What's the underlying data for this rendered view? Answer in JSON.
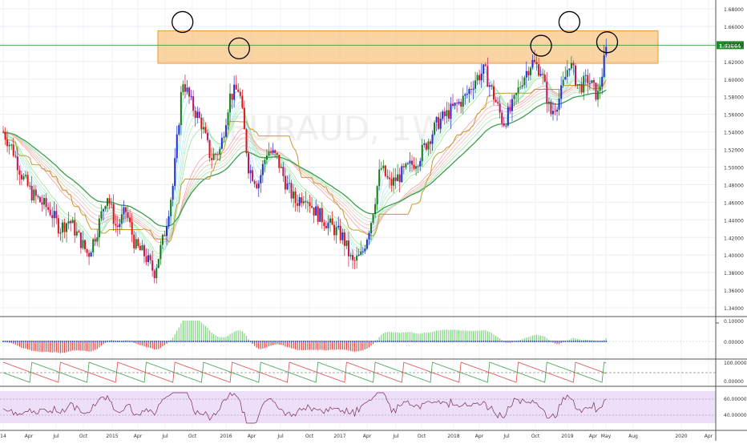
{
  "watermark": "EURAUD, 1W",
  "price_axis": {
    "ticks": [
      "1.68000",
      "1.66000",
      "1.64000",
      "1.62000",
      "1.60000",
      "1.58000",
      "1.56000",
      "1.54000",
      "1.52000",
      "1.50000",
      "1.48000",
      "1.46000",
      "1.44000",
      "1.42000",
      "1.40000",
      "1.38000",
      "1.36000",
      "1.34000"
    ],
    "last_price_label": "1.63864"
  },
  "time_axis": {
    "labels": [
      "14",
      "Apr",
      "Jul",
      "Oct",
      "2015",
      "Apr",
      "Jul",
      "Oct",
      "2016",
      "Apr",
      "Jul",
      "Oct",
      "2017",
      "Apr",
      "Jul",
      "Oct",
      "2018",
      "Apr",
      "Jul",
      "Oct",
      "2019",
      "Apr",
      "May",
      "Aug",
      "2020",
      "Apr"
    ]
  },
  "macd_axis": {
    "ticks": [
      "0.10000",
      "0.00000"
    ]
  },
  "aroon_axis": {
    "ticks": [
      "100.00000",
      "0.00000"
    ]
  },
  "rsi_axis": {
    "ticks": [
      "60.00000",
      "40.00000"
    ]
  },
  "colors": {
    "bull_candle": "#1a7a1a",
    "bear_candle": "#e0151a",
    "blue_candle": "#1f2fd0",
    "resistance_zone": "#f7b05a",
    "price_line": "#2e9a2e",
    "channel_line": "#c49a2a",
    "rsi_band": "#e9d7f5"
  },
  "chart_data": {
    "type": "candlestick",
    "symbol": "EURAUD",
    "timeframe": "1W",
    "last_price": 1.63864,
    "ylim": [
      1.33,
      1.69
    ],
    "x_period": [
      "2014-01",
      "2020-04"
    ],
    "resistance_zone": [
      1.618,
      1.655
    ],
    "highlighted_tops": [
      {
        "date": "2015-08",
        "price": 1.665
      },
      {
        "date": "2016-02",
        "price": 1.635
      },
      {
        "date": "2018-10",
        "price": 1.638
      },
      {
        "date": "2019-01",
        "price": 1.665
      },
      {
        "date": "2019-05",
        "price": 1.642
      }
    ],
    "close_path": [
      [
        "2014-01",
        1.54
      ],
      [
        "2014-02",
        1.52
      ],
      [
        "2014-03",
        1.49
      ],
      [
        "2014-04",
        1.47
      ],
      [
        "2014-05",
        1.46
      ],
      [
        "2014-06",
        1.45
      ],
      [
        "2014-07",
        1.43
      ],
      [
        "2014-08",
        1.44
      ],
      [
        "2014-09",
        1.42
      ],
      [
        "2014-10",
        1.4
      ],
      [
        "2014-11",
        1.43
      ],
      [
        "2014-12",
        1.47
      ],
      [
        "2015-01",
        1.43
      ],
      [
        "2015-02",
        1.45
      ],
      [
        "2015-03",
        1.41
      ],
      [
        "2015-04",
        1.4
      ],
      [
        "2015-05",
        1.38
      ],
      [
        "2015-06",
        1.42
      ],
      [
        "2015-07",
        1.48
      ],
      [
        "2015-08",
        1.6
      ],
      [
        "2015-09",
        1.57
      ],
      [
        "2015-10",
        1.55
      ],
      [
        "2015-11",
        1.51
      ],
      [
        "2015-12",
        1.52
      ],
      [
        "2016-01",
        1.58
      ],
      [
        "2016-02",
        1.59
      ],
      [
        "2016-03",
        1.5
      ],
      [
        "2016-04",
        1.48
      ],
      [
        "2016-05",
        1.52
      ],
      [
        "2016-06",
        1.51
      ],
      [
        "2016-07",
        1.48
      ],
      [
        "2016-08",
        1.46
      ],
      [
        "2016-09",
        1.47
      ],
      [
        "2016-10",
        1.45
      ],
      [
        "2016-11",
        1.44
      ],
      [
        "2016-12",
        1.43
      ],
      [
        "2017-01",
        1.42
      ],
      [
        "2017-02",
        1.39
      ],
      [
        "2017-03",
        1.4
      ],
      [
        "2017-04",
        1.44
      ],
      [
        "2017-05",
        1.5
      ],
      [
        "2017-06",
        1.48
      ],
      [
        "2017-07",
        1.49
      ],
      [
        "2017-08",
        1.5
      ],
      [
        "2017-09",
        1.51
      ],
      [
        "2017-10",
        1.53
      ],
      [
        "2017-11",
        1.55
      ],
      [
        "2017-12",
        1.56
      ],
      [
        "2018-01",
        1.57
      ],
      [
        "2018-02",
        1.58
      ],
      [
        "2018-03",
        1.6
      ],
      [
        "2018-04",
        1.61
      ],
      [
        "2018-05",
        1.58
      ],
      [
        "2018-06",
        1.55
      ],
      [
        "2018-07",
        1.57
      ],
      [
        "2018-08",
        1.6
      ],
      [
        "2018-09",
        1.62
      ],
      [
        "2018-10",
        1.61
      ],
      [
        "2018-11",
        1.56
      ],
      [
        "2018-12",
        1.58
      ],
      [
        "2019-01",
        1.62
      ],
      [
        "2019-02",
        1.59
      ],
      [
        "2019-03",
        1.6
      ],
      [
        "2019-04",
        1.58
      ],
      [
        "2019-05",
        1.63864
      ]
    ],
    "indicators": [
      "Guppy moving averages",
      "Donchian baseline",
      "MACD histogram",
      "Aroon",
      "RSI"
    ]
  }
}
